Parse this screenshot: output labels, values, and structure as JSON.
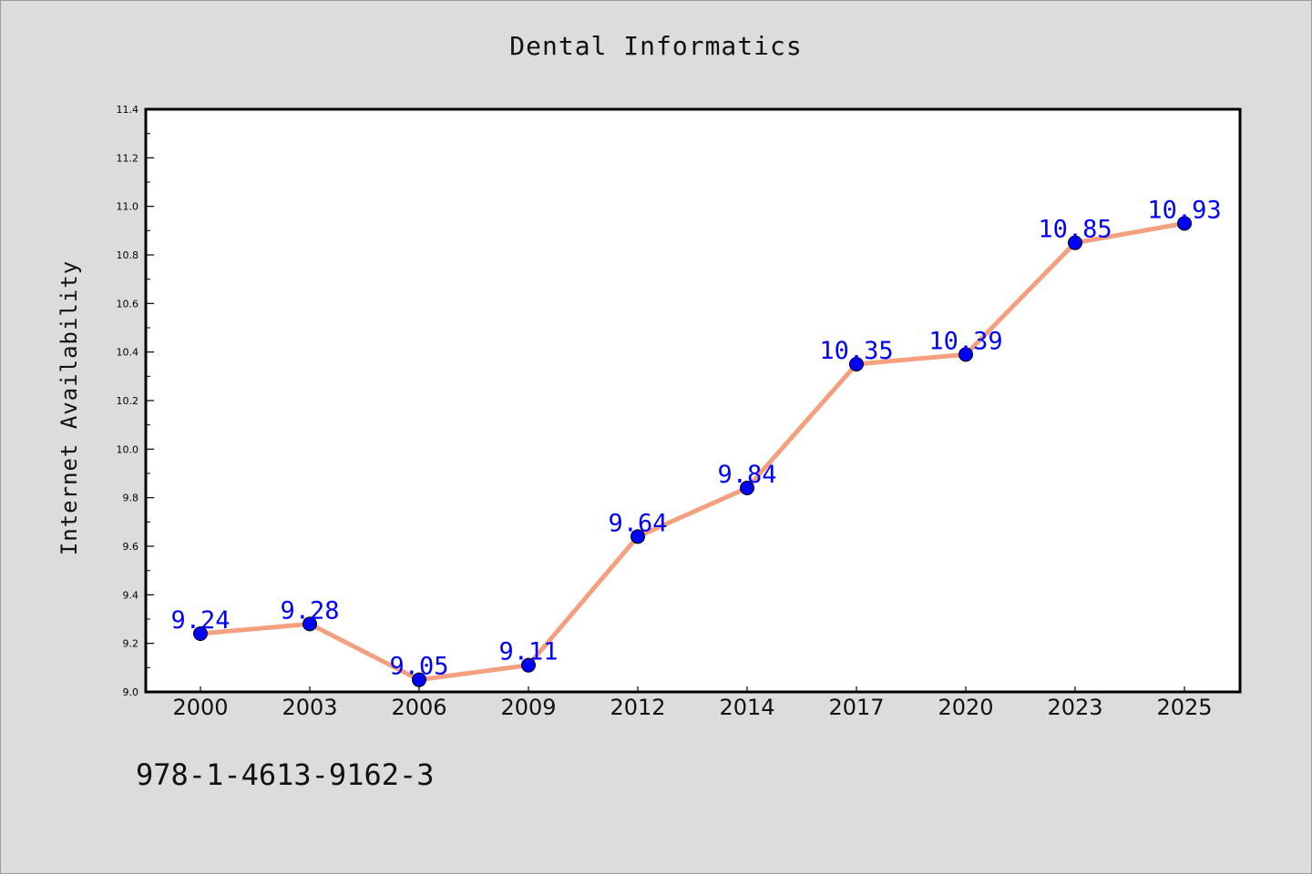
{
  "chart_data": {
    "type": "line",
    "title": "Dental Informatics",
    "xlabel": "",
    "ylabel": "Internet Availability",
    "categories": [
      "2000",
      "2003",
      "2006",
      "2009",
      "2012",
      "2014",
      "2017",
      "2020",
      "2023",
      "2025"
    ],
    "series": [
      {
        "values": [
          9.24,
          9.28,
          9.05,
          9.11,
          9.64,
          9.84,
          10.35,
          10.39,
          10.85,
          10.93
        ],
        "line_color": "#f4a07f",
        "marker_color": "#0000ff"
      }
    ],
    "data_labels": [
      "9.24",
      "9.28",
      "9.05",
      "9.11",
      "9.64",
      "9.84",
      "10.35",
      "10.39",
      "10.85",
      "10.93"
    ],
    "ylim": [
      9.0,
      11.4
    ],
    "yticks": [
      "9.0",
      "9.2",
      "9.4",
      "9.6",
      "9.8",
      "10.0",
      "10.2",
      "10.4",
      "10.6",
      "10.8",
      "11.0",
      "11.2",
      "11.4"
    ],
    "grid": false,
    "legend": "none",
    "label_color": "#0000ff"
  },
  "footer": {
    "isbn": "978-1-4613-9162-3"
  }
}
